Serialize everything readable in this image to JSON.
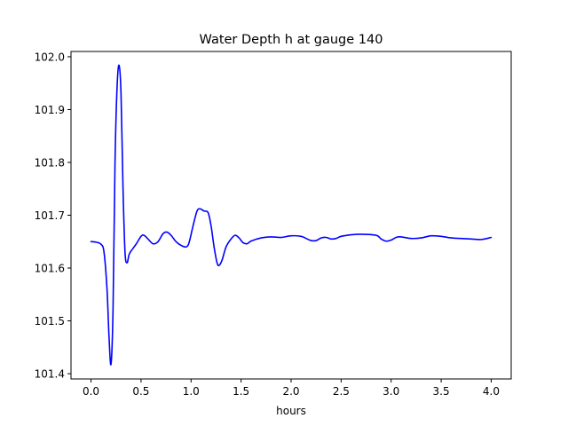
{
  "chart_data": {
    "type": "line",
    "title": "Water Depth h at gauge 140",
    "xlabel": "hours",
    "ylabel": "",
    "xlim": [
      -0.2,
      4.2
    ],
    "ylim": [
      101.39,
      102.01
    ],
    "x_ticks": [
      0.0,
      0.5,
      1.0,
      1.5,
      2.0,
      2.5,
      3.0,
      3.5,
      4.0
    ],
    "x_tick_labels": [
      "0.0",
      "0.5",
      "1.0",
      "1.5",
      "2.0",
      "2.5",
      "3.0",
      "3.5",
      "4.0"
    ],
    "y_ticks": [
      101.4,
      101.5,
      101.6,
      101.7,
      101.8,
      101.9,
      102.0
    ],
    "y_tick_labels": [
      "101.4",
      "101.5",
      "101.6",
      "101.7",
      "101.8",
      "101.9",
      "102.0"
    ],
    "grid": false,
    "legend": "none",
    "series": [
      {
        "color": "#0000ff",
        "points": [
          [
            0.0,
            101.65
          ],
          [
            0.05,
            101.649
          ],
          [
            0.1,
            101.645
          ],
          [
            0.13,
            101.63
          ],
          [
            0.16,
            101.56
          ],
          [
            0.18,
            101.47
          ],
          [
            0.2,
            101.418
          ],
          [
            0.22,
            101.52
          ],
          [
            0.24,
            101.8
          ],
          [
            0.26,
            101.94
          ],
          [
            0.28,
            101.984
          ],
          [
            0.3,
            101.93
          ],
          [
            0.32,
            101.75
          ],
          [
            0.34,
            101.63
          ],
          [
            0.36,
            101.61
          ],
          [
            0.38,
            101.625
          ],
          [
            0.4,
            101.632
          ],
          [
            0.45,
            101.645
          ],
          [
            0.5,
            101.66
          ],
          [
            0.53,
            101.662
          ],
          [
            0.57,
            101.655
          ],
          [
            0.62,
            101.646
          ],
          [
            0.67,
            101.65
          ],
          [
            0.72,
            101.665
          ],
          [
            0.76,
            101.668
          ],
          [
            0.8,
            101.662
          ],
          [
            0.85,
            101.65
          ],
          [
            0.9,
            101.643
          ],
          [
            0.95,
            101.64
          ],
          [
            0.98,
            101.648
          ],
          [
            1.02,
            101.68
          ],
          [
            1.06,
            101.708
          ],
          [
            1.09,
            101.712
          ],
          [
            1.13,
            101.708
          ],
          [
            1.17,
            101.705
          ],
          [
            1.2,
            101.68
          ],
          [
            1.23,
            101.64
          ],
          [
            1.26,
            101.61
          ],
          [
            1.28,
            101.605
          ],
          [
            1.31,
            101.615
          ],
          [
            1.35,
            101.64
          ],
          [
            1.4,
            101.655
          ],
          [
            1.44,
            101.662
          ],
          [
            1.48,
            101.657
          ],
          [
            1.52,
            101.648
          ],
          [
            1.56,
            101.646
          ],
          [
            1.6,
            101.651
          ],
          [
            1.7,
            101.657
          ],
          [
            1.8,
            101.659
          ],
          [
            1.9,
            101.658
          ],
          [
            2.0,
            101.661
          ],
          [
            2.1,
            101.66
          ],
          [
            2.15,
            101.656
          ],
          [
            2.2,
            101.652
          ],
          [
            2.25,
            101.652
          ],
          [
            2.3,
            101.657
          ],
          [
            2.35,
            101.658
          ],
          [
            2.4,
            101.655
          ],
          [
            2.45,
            101.656
          ],
          [
            2.5,
            101.66
          ],
          [
            2.6,
            101.663
          ],
          [
            2.7,
            101.664
          ],
          [
            2.85,
            101.662
          ],
          [
            2.9,
            101.655
          ],
          [
            2.95,
            101.651
          ],
          [
            3.0,
            101.653
          ],
          [
            3.05,
            101.658
          ],
          [
            3.1,
            101.659
          ],
          [
            3.2,
            101.656
          ],
          [
            3.3,
            101.657
          ],
          [
            3.4,
            101.661
          ],
          [
            3.5,
            101.66
          ],
          [
            3.6,
            101.657
          ],
          [
            3.7,
            101.656
          ],
          [
            3.8,
            101.655
          ],
          [
            3.9,
            101.654
          ],
          [
            4.0,
            101.658
          ]
        ]
      }
    ]
  }
}
